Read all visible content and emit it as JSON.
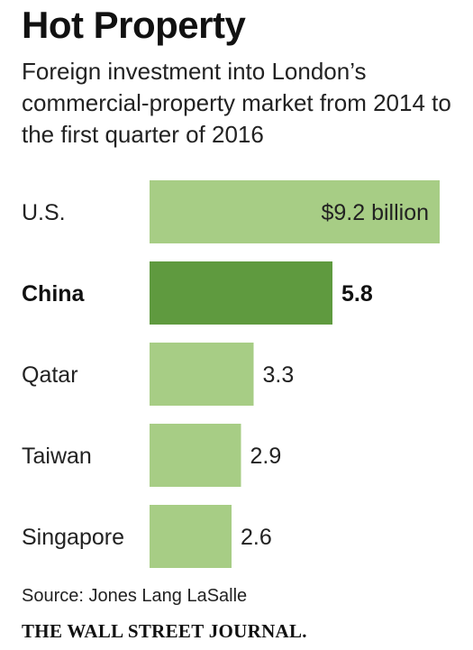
{
  "header": {
    "title": "Hot Property",
    "subtitle": "Foreign investment into London’s commercial-property market from 2014 to the first quarter of 2016"
  },
  "chart_data": {
    "type": "bar",
    "orientation": "horizontal",
    "categories": [
      "U.S.",
      "China",
      "Qatar",
      "Taiwan",
      "Singapore"
    ],
    "values": [
      9.2,
      5.8,
      3.3,
      2.9,
      2.6
    ],
    "value_labels": [
      "$9.2 billion",
      "5.8",
      "3.3",
      "2.9",
      "2.6"
    ],
    "unit": "billion",
    "highlight": "China",
    "grid": false,
    "colors": {
      "bar": "#a7cd85",
      "highlight": "#5f9a3f"
    }
  },
  "footer": {
    "source": "Source: Jones Lang LaSalle",
    "publisher": "THE WALL STREET JOURNAL."
  }
}
